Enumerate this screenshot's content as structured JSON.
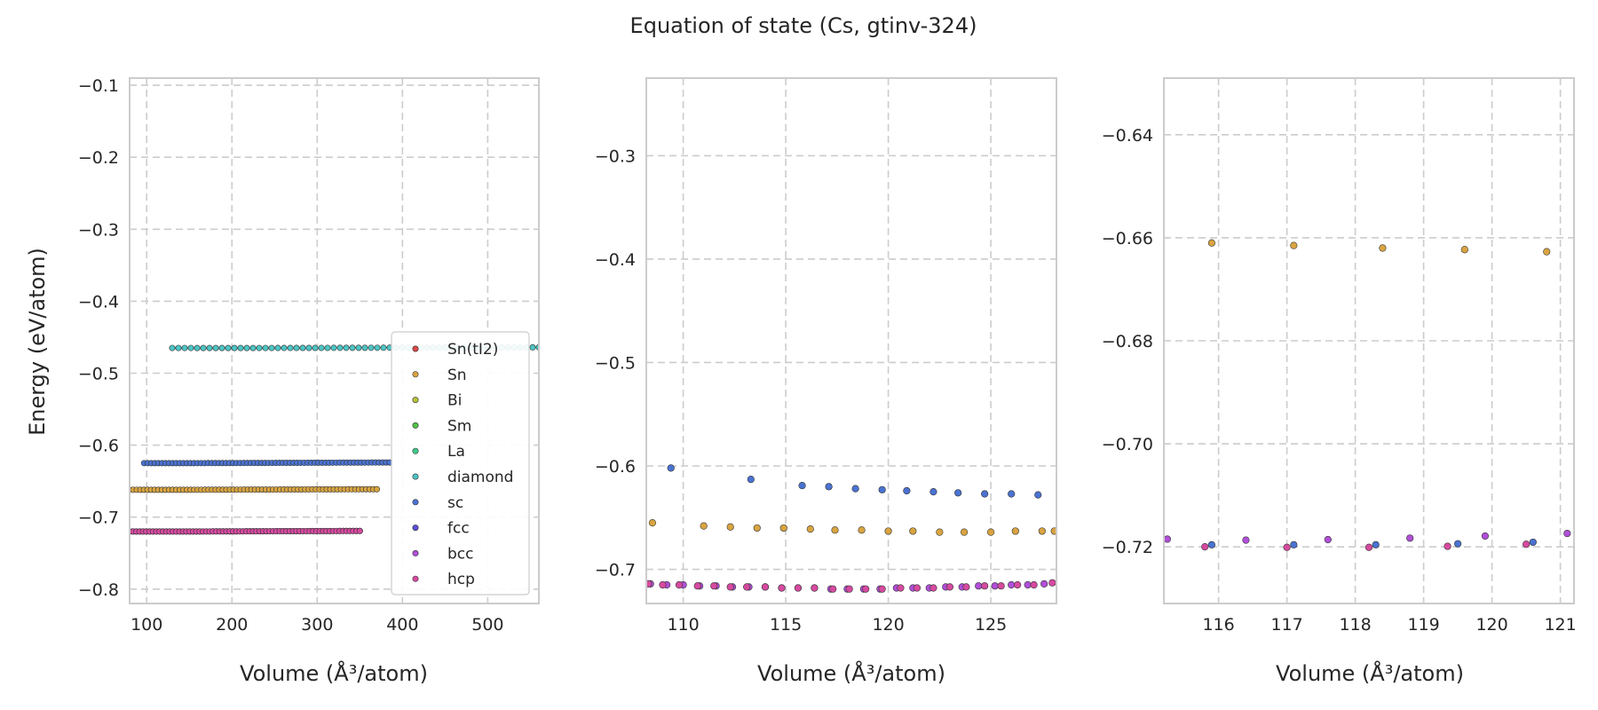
{
  "figure": {
    "title": "Equation of state (Cs, gtinv-324)",
    "ylabel": "Energy (eV/atom)",
    "xlabel": "Volume (Å³/atom)"
  },
  "colors": {
    "Sn(tI2)": "#d94848",
    "Sn": "#d9a441",
    "Bi": "#b8c23a",
    "Sm": "#52c24b",
    "La": "#3ec98a",
    "diamond": "#4ec4c4",
    "sc": "#4a72d0",
    "fcc": "#5b4fd6",
    "bcc": "#b04fd8",
    "hcp": "#d64aa0"
  },
  "legend": {
    "position": "lower-right",
    "entries": [
      "Sn(tI2)",
      "Sn",
      "Bi",
      "Sm",
      "La",
      "diamond",
      "sc",
      "fcc",
      "bcc",
      "hcp"
    ]
  },
  "chart_data": [
    {
      "type": "scatter",
      "panel": "left",
      "grid": true,
      "xlim": [
        80,
        560
      ],
      "ylim": [
        -0.82,
        -0.09
      ],
      "xticks": [
        100,
        200,
        300,
        400,
        500
      ],
      "yticks": [
        -0.8,
        -0.7,
        -0.6,
        -0.5,
        -0.4,
        -0.3,
        -0.2,
        -0.1
      ],
      "xtick_labels": [
        "100",
        "200",
        "300",
        "400",
        "500"
      ],
      "ytick_labels": [
        "−0.8",
        "−0.7",
        "−0.6",
        "−0.5",
        "−0.4",
        "−0.3",
        "−0.2",
        "−0.1"
      ],
      "curves": [
        {
          "name": "diamond",
          "v0": 190,
          "e0": -0.465,
          "b": 7.7e-06,
          "vmin": 130,
          "vmax": 560,
          "n": 60
        },
        {
          "name": "sc",
          "v0": 128,
          "e0": -0.625,
          "b": 1.15e-05,
          "vmin": 97,
          "vmax": 385,
          "n": 70
        },
        {
          "name": "Sn",
          "v0": 122,
          "e0": -0.662,
          "b": 1.05e-05,
          "vmin": 80,
          "vmax": 370,
          "n": 70
        },
        {
          "name": "bcc",
          "v0": 119,
          "e0": -0.72,
          "b": 1.15e-05,
          "vmin": 80,
          "vmax": 350,
          "n": 70
        },
        {
          "name": "hcp",
          "v0": 119,
          "e0": -0.72,
          "b": 1.15e-05,
          "vmin": 80,
          "vmax": 350,
          "n": 70
        }
      ]
    },
    {
      "type": "scatter",
      "panel": "middle",
      "grid": true,
      "xlim": [
        108.2,
        128.2
      ],
      "ylim": [
        -0.733,
        -0.225
      ],
      "xticks": [
        110,
        115,
        120,
        125
      ],
      "yticks": [
        -0.7,
        -0.6,
        -0.5,
        -0.4,
        -0.3
      ],
      "xtick_labels": [
        "110",
        "115",
        "120",
        "125"
      ],
      "ytick_labels": [
        "−0.7",
        "−0.6",
        "−0.5",
        "−0.4",
        "−0.3"
      ],
      "series": [
        {
          "name": "sc",
          "x": [
            109.4,
            113.3,
            115.8,
            117.1,
            118.4,
            119.7,
            120.9,
            122.2,
            123.4,
            124.7,
            126.0,
            127.3
          ],
          "y": [
            -0.602,
            -0.613,
            -0.619,
            -0.62,
            -0.622,
            -0.623,
            -0.624,
            -0.625,
            -0.626,
            -0.627,
            -0.627,
            -0.628
          ]
        },
        {
          "name": "Sn",
          "x": [
            108.5,
            111.0,
            112.3,
            113.6,
            114.9,
            116.2,
            117.4,
            118.7,
            120.0,
            121.2,
            122.5,
            123.7,
            125.0,
            126.2,
            127.5,
            128.1
          ],
          "y": [
            -0.655,
            -0.658,
            -0.659,
            -0.66,
            -0.66,
            -0.661,
            -0.662,
            -0.662,
            -0.663,
            -0.663,
            -0.664,
            -0.664,
            -0.664,
            -0.663,
            -0.663,
            -0.663
          ]
        },
        {
          "name": "bcc",
          "x": [
            108.4,
            109.2,
            110.0,
            110.8,
            111.6,
            112.4,
            113.2,
            114.0,
            114.8,
            115.6,
            116.4,
            117.2,
            118.0,
            118.8,
            119.6,
            120.4,
            121.2,
            122.0,
            122.8,
            123.6,
            124.4,
            125.2,
            126.0,
            126.8,
            127.6
          ],
          "y": [
            -0.714,
            -0.715,
            -0.715,
            -0.716,
            -0.716,
            -0.717,
            -0.717,
            -0.717,
            -0.718,
            -0.718,
            -0.718,
            -0.719,
            -0.719,
            -0.719,
            -0.719,
            -0.718,
            -0.718,
            -0.718,
            -0.717,
            -0.717,
            -0.716,
            -0.716,
            -0.715,
            -0.715,
            -0.714
          ]
        },
        {
          "name": "hcp",
          "x": [
            108.3,
            109.0,
            109.8,
            110.7,
            111.5,
            112.3,
            113.1,
            114.0,
            114.8,
            115.6,
            116.4,
            117.3,
            118.1,
            118.9,
            119.7,
            120.6,
            121.4,
            122.2,
            123.0,
            123.8,
            124.7,
            125.5,
            126.3,
            127.1,
            128.0
          ],
          "y": [
            -0.714,
            -0.715,
            -0.715,
            -0.716,
            -0.716,
            -0.717,
            -0.717,
            -0.717,
            -0.718,
            -0.718,
            -0.718,
            -0.719,
            -0.719,
            -0.719,
            -0.719,
            -0.718,
            -0.718,
            -0.718,
            -0.717,
            -0.717,
            -0.716,
            -0.716,
            -0.715,
            -0.715,
            -0.713
          ]
        }
      ]
    },
    {
      "type": "scatter",
      "panel": "right",
      "grid": true,
      "xlim": [
        115.2,
        121.2
      ],
      "ylim": [
        -0.731,
        -0.629
      ],
      "xticks": [
        116,
        117,
        118,
        119,
        120,
        121
      ],
      "yticks": [
        -0.72,
        -0.7,
        -0.68,
        -0.66,
        -0.64
      ],
      "xtick_labels": [
        "116",
        "117",
        "118",
        "119",
        "120",
        "121"
      ],
      "ytick_labels": [
        "−0.72",
        "−0.70",
        "−0.68",
        "−0.66",
        "−0.64"
      ],
      "series": [
        {
          "name": "Sn",
          "x": [
            115.9,
            117.1,
            118.4,
            119.6,
            120.8
          ],
          "y": [
            -0.661,
            -0.6615,
            -0.662,
            -0.6623,
            -0.6627
          ]
        },
        {
          "name": "sc",
          "x": [
            115.9,
            117.1,
            118.3,
            119.5,
            120.6
          ],
          "y": [
            -0.7196,
            -0.7196,
            -0.7196,
            -0.7194,
            -0.7191
          ]
        },
        {
          "name": "bcc",
          "x": [
            115.25,
            116.4,
            117.6,
            118.8,
            119.9,
            121.1
          ],
          "y": [
            -0.7185,
            -0.7187,
            -0.7186,
            -0.7183,
            -0.7179,
            -0.7174
          ]
        },
        {
          "name": "hcp",
          "x": [
            115.8,
            117.0,
            118.2,
            119.35,
            120.5
          ],
          "y": [
            -0.72,
            -0.7201,
            -0.7201,
            -0.7199,
            -0.7195
          ]
        }
      ]
    }
  ]
}
